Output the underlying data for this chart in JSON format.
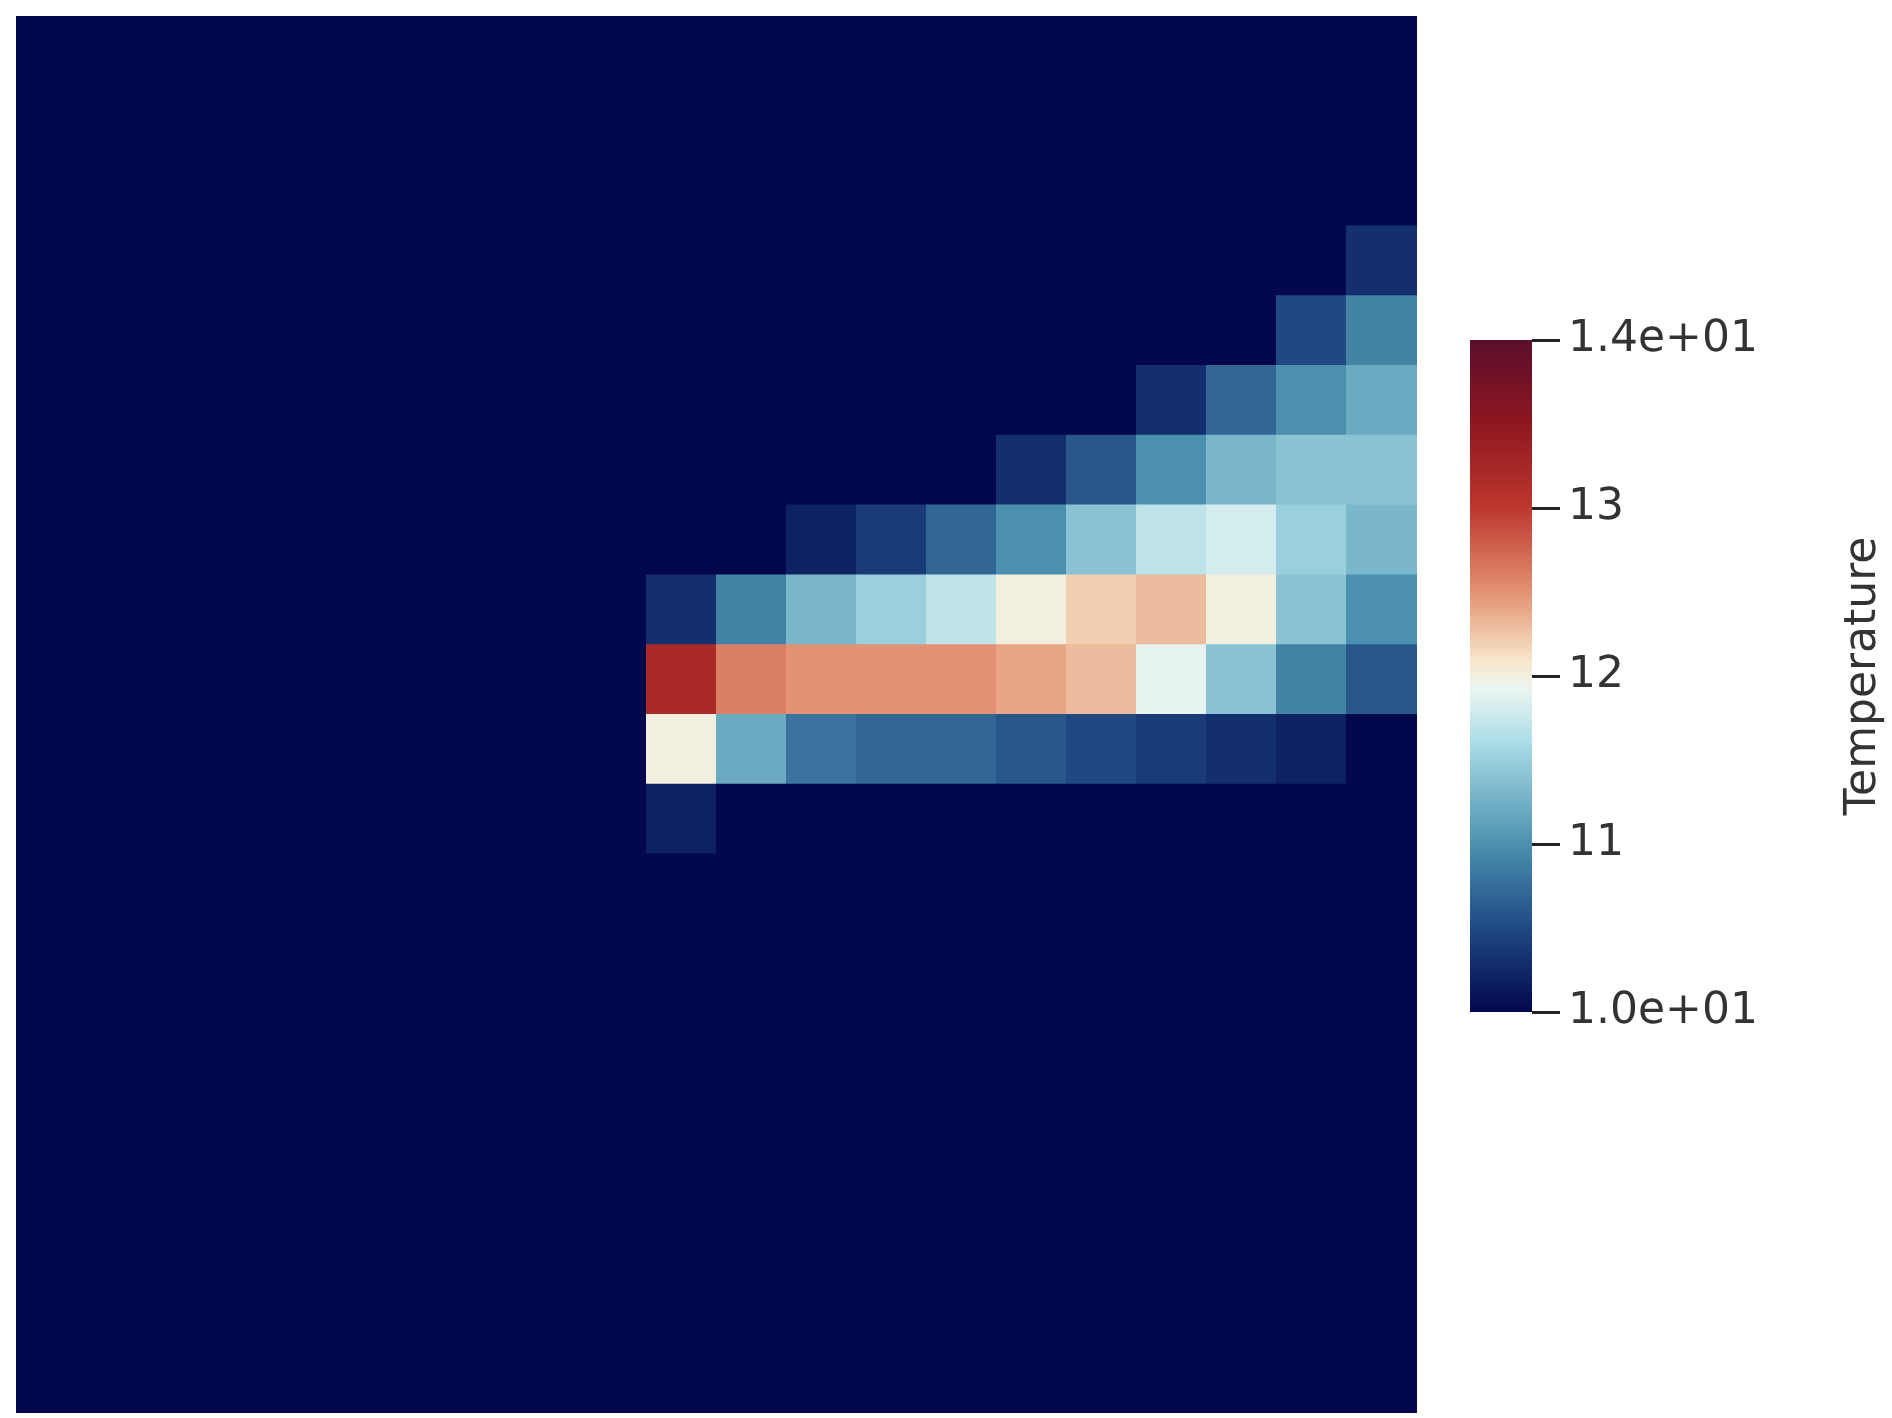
{
  "chart_data": {
    "type": "heatmap",
    "clabel": "Temperature",
    "categories": [
      null,
      null,
      null,
      null,
      null,
      null,
      null,
      null,
      null,
      null,
      null,
      null,
      null,
      null,
      null,
      null,
      null,
      null,
      null,
      null
    ],
    "y_categories": [
      null,
      null,
      null,
      null,
      null,
      null,
      null,
      null,
      null,
      null,
      null,
      null,
      null,
      null,
      null,
      null,
      null,
      null,
      null,
      null
    ],
    "cells": [
      [
        10,
        10,
        10,
        10,
        10,
        10,
        10,
        10,
        10,
        10,
        10,
        10,
        10,
        10,
        10,
        10,
        10,
        10,
        10,
        10
      ],
      [
        10,
        10,
        10,
        10,
        10,
        10,
        10,
        10,
        10,
        10,
        10,
        10,
        10,
        10,
        10,
        10,
        10,
        10,
        10,
        10
      ],
      [
        10,
        10,
        10,
        10,
        10,
        10,
        10,
        10,
        10,
        10,
        10,
        10,
        10,
        10,
        10,
        10,
        10,
        10,
        10,
        10
      ],
      [
        10,
        10,
        10,
        10,
        10,
        10,
        10,
        10,
        10,
        10,
        10,
        10,
        10,
        10,
        10,
        10,
        10,
        10,
        10,
        10.3
      ],
      [
        10,
        10,
        10,
        10,
        10,
        10,
        10,
        10,
        10,
        10,
        10,
        10,
        10,
        10,
        10,
        10,
        10,
        10,
        10.5,
        10.9
      ],
      [
        10,
        10,
        10,
        10,
        10,
        10,
        10,
        10,
        10,
        10,
        10,
        10,
        10,
        10,
        10,
        10,
        10.3,
        10.7,
        11,
        11.2
      ],
      [
        10,
        10,
        10,
        10,
        10,
        10,
        10,
        10,
        10,
        10,
        10,
        10,
        10,
        10,
        10.3,
        10.6,
        11,
        11.3,
        11.4,
        11.4
      ],
      [
        10,
        10,
        10,
        10,
        10,
        10,
        10,
        10,
        10,
        10,
        10,
        10.2,
        10.4,
        10.7,
        11,
        11.4,
        11.7,
        11.8,
        11.5,
        11.3
      ],
      [
        10,
        10,
        10,
        10,
        10,
        10,
        10,
        10,
        10,
        10.3,
        10.9,
        11.3,
        11.5,
        11.7,
        12,
        12.2,
        12.3,
        12,
        11.4,
        11
      ],
      [
        10,
        10,
        10,
        10,
        10,
        10,
        10,
        10,
        10,
        13.2,
        12.6,
        12.5,
        12.5,
        12.5,
        12.4,
        12.3,
        11.9,
        11.4,
        10.9,
        10.6
      ],
      [
        10,
        10,
        10,
        10,
        10,
        10,
        10,
        10,
        10,
        12,
        11.2,
        10.8,
        10.7,
        10.7,
        10.6,
        10.5,
        10.4,
        10.3,
        10.2,
        10
      ],
      [
        10,
        10,
        10,
        10,
        10,
        10,
        10,
        10,
        10,
        10.2,
        10,
        10,
        10,
        10,
        10,
        10,
        10,
        10,
        10,
        10
      ],
      [
        10,
        10,
        10,
        10,
        10,
        10,
        10,
        10,
        10,
        10,
        10,
        10,
        10,
        10,
        10,
        10,
        10,
        10,
        10,
        10
      ],
      [
        10,
        10,
        10,
        10,
        10,
        10,
        10,
        10,
        10,
        10,
        10,
        10,
        10,
        10,
        10,
        10,
        10,
        10,
        10,
        10
      ],
      [
        10,
        10,
        10,
        10,
        10,
        10,
        10,
        10,
        10,
        10,
        10,
        10,
        10,
        10,
        10,
        10,
        10,
        10,
        10,
        10
      ],
      [
        10,
        10,
        10,
        10,
        10,
        10,
        10,
        10,
        10,
        10,
        10,
        10,
        10,
        10,
        10,
        10,
        10,
        10,
        10,
        10
      ],
      [
        10,
        10,
        10,
        10,
        10,
        10,
        10,
        10,
        10,
        10,
        10,
        10,
        10,
        10,
        10,
        10,
        10,
        10,
        10,
        10
      ],
      [
        10,
        10,
        10,
        10,
        10,
        10,
        10,
        10,
        10,
        10,
        10,
        10,
        10,
        10,
        10,
        10,
        10,
        10,
        10,
        10
      ],
      [
        10,
        10,
        10,
        10,
        10,
        10,
        10,
        10,
        10,
        10,
        10,
        10,
        10,
        10,
        10,
        10,
        10,
        10,
        10,
        10
      ],
      [
        10,
        10,
        10,
        10,
        10,
        10,
        10,
        10,
        10,
        10,
        10,
        10,
        10,
        10,
        10,
        10,
        10,
        10,
        10,
        10
      ]
    ],
    "clim": [
      10,
      14
    ],
    "cticks": [
      {
        "value": 14,
        "label": "1.4e+01"
      },
      13,
      12,
      11,
      {
        "value": 10,
        "label": "1.0e+01"
      }
    ]
  }
}
